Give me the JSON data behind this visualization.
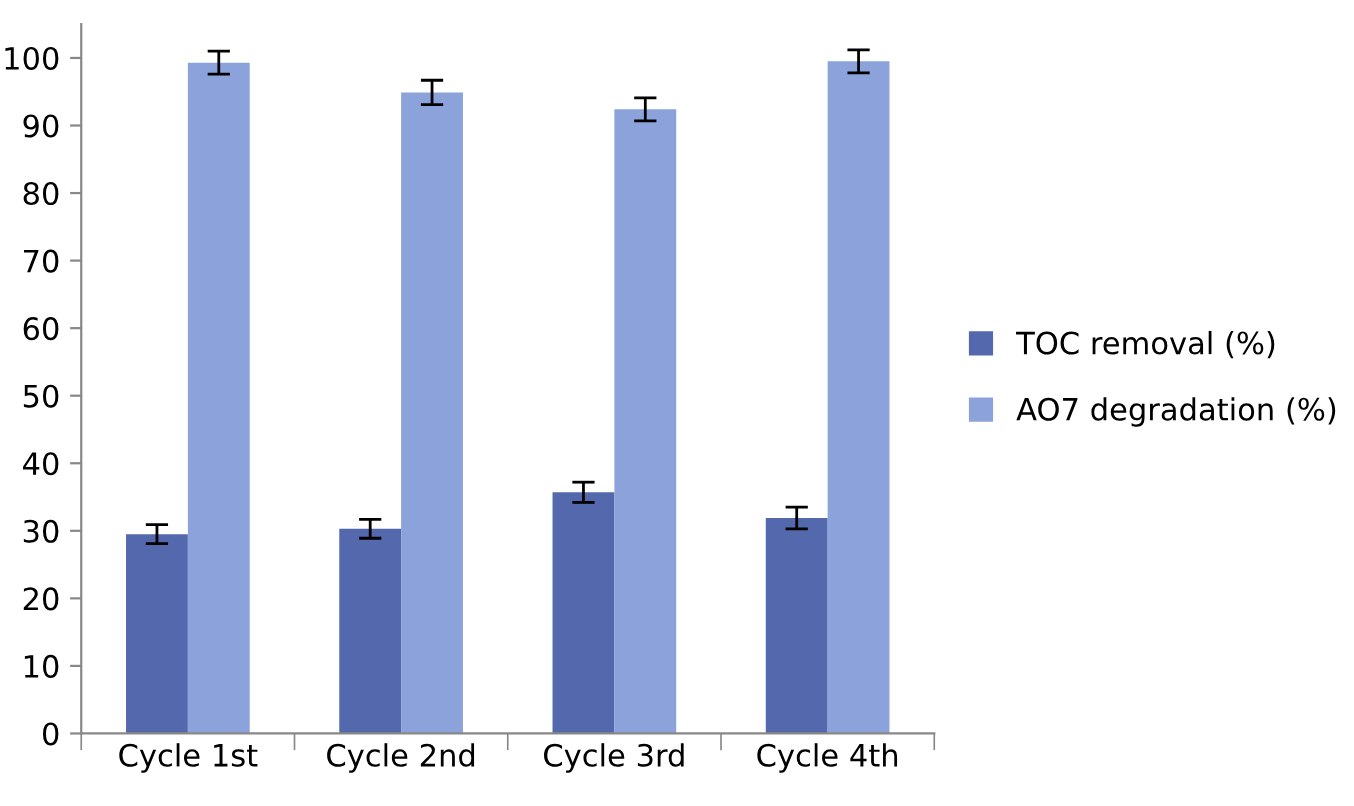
{
  "chart_data": {
    "type": "bar",
    "categories": [
      "Cycle 1st",
      "Cycle 2nd",
      "Cycle 3rd",
      "Cycle 4th"
    ],
    "series": [
      {
        "name": "TOC removal (%)",
        "color": "#5468ad",
        "values": [
          29.5,
          30.3,
          35.7,
          31.9
        ],
        "errors": [
          1.4,
          1.4,
          1.5,
          1.6
        ]
      },
      {
        "name": "AO7 degradation (%)",
        "color": "#8ba3da",
        "values": [
          99.3,
          94.9,
          92.4,
          99.5
        ],
        "errors": [
          1.7,
          1.8,
          1.7,
          1.7
        ]
      }
    ],
    "ylim": [
      0,
      105
    ],
    "yticks": [
      0,
      10,
      20,
      30,
      40,
      50,
      60,
      70,
      80,
      90,
      100
    ],
    "grid": false,
    "legend": "right"
  }
}
